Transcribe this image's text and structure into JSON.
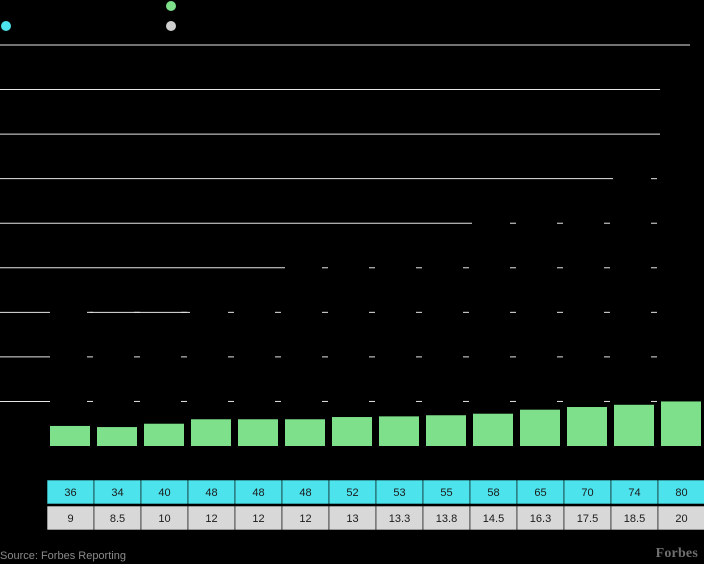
{
  "chart_data": {
    "type": "bar",
    "ylim": [
      0,
      180
    ],
    "grid": true,
    "legend": [
      "",
      "",
      ""
    ],
    "categories": [
      "",
      "",
      "",
      "",
      "",
      "",
      "",
      "",
      "",
      "",
      "",
      "",
      "",
      ""
    ],
    "series": [
      {
        "values": [
          9,
          8.5,
          10,
          12,
          12,
          12,
          13,
          13.3,
          13.8,
          14.5,
          16.3,
          17.5,
          18.5,
          20
        ]
      }
    ],
    "table_row_1": [
      "36",
      "34",
      "40",
      "48",
      "48",
      "48",
      "52",
      "53",
      "55",
      "58",
      "65",
      "70",
      "74",
      "80"
    ],
    "table_row_2": [
      "9",
      "8.5",
      "10",
      "12",
      "12",
      "12",
      "13",
      "13.3",
      "13.8",
      "14.5",
      "16.3",
      "17.5",
      "18.5",
      "20"
    ]
  },
  "colors": {
    "bar": "#7ee08a",
    "row1": "#4de3ec",
    "row2": "#d8d8d8",
    "legend_cyan": "#4de3ec",
    "legend_green": "#7ee08a",
    "legend_gray": "#cfcfcf",
    "grid": "#e6e6e6",
    "text": "#1a1a1a"
  },
  "footer": {
    "source": "Source: Forbes Reporting",
    "brand": "Forbes"
  }
}
